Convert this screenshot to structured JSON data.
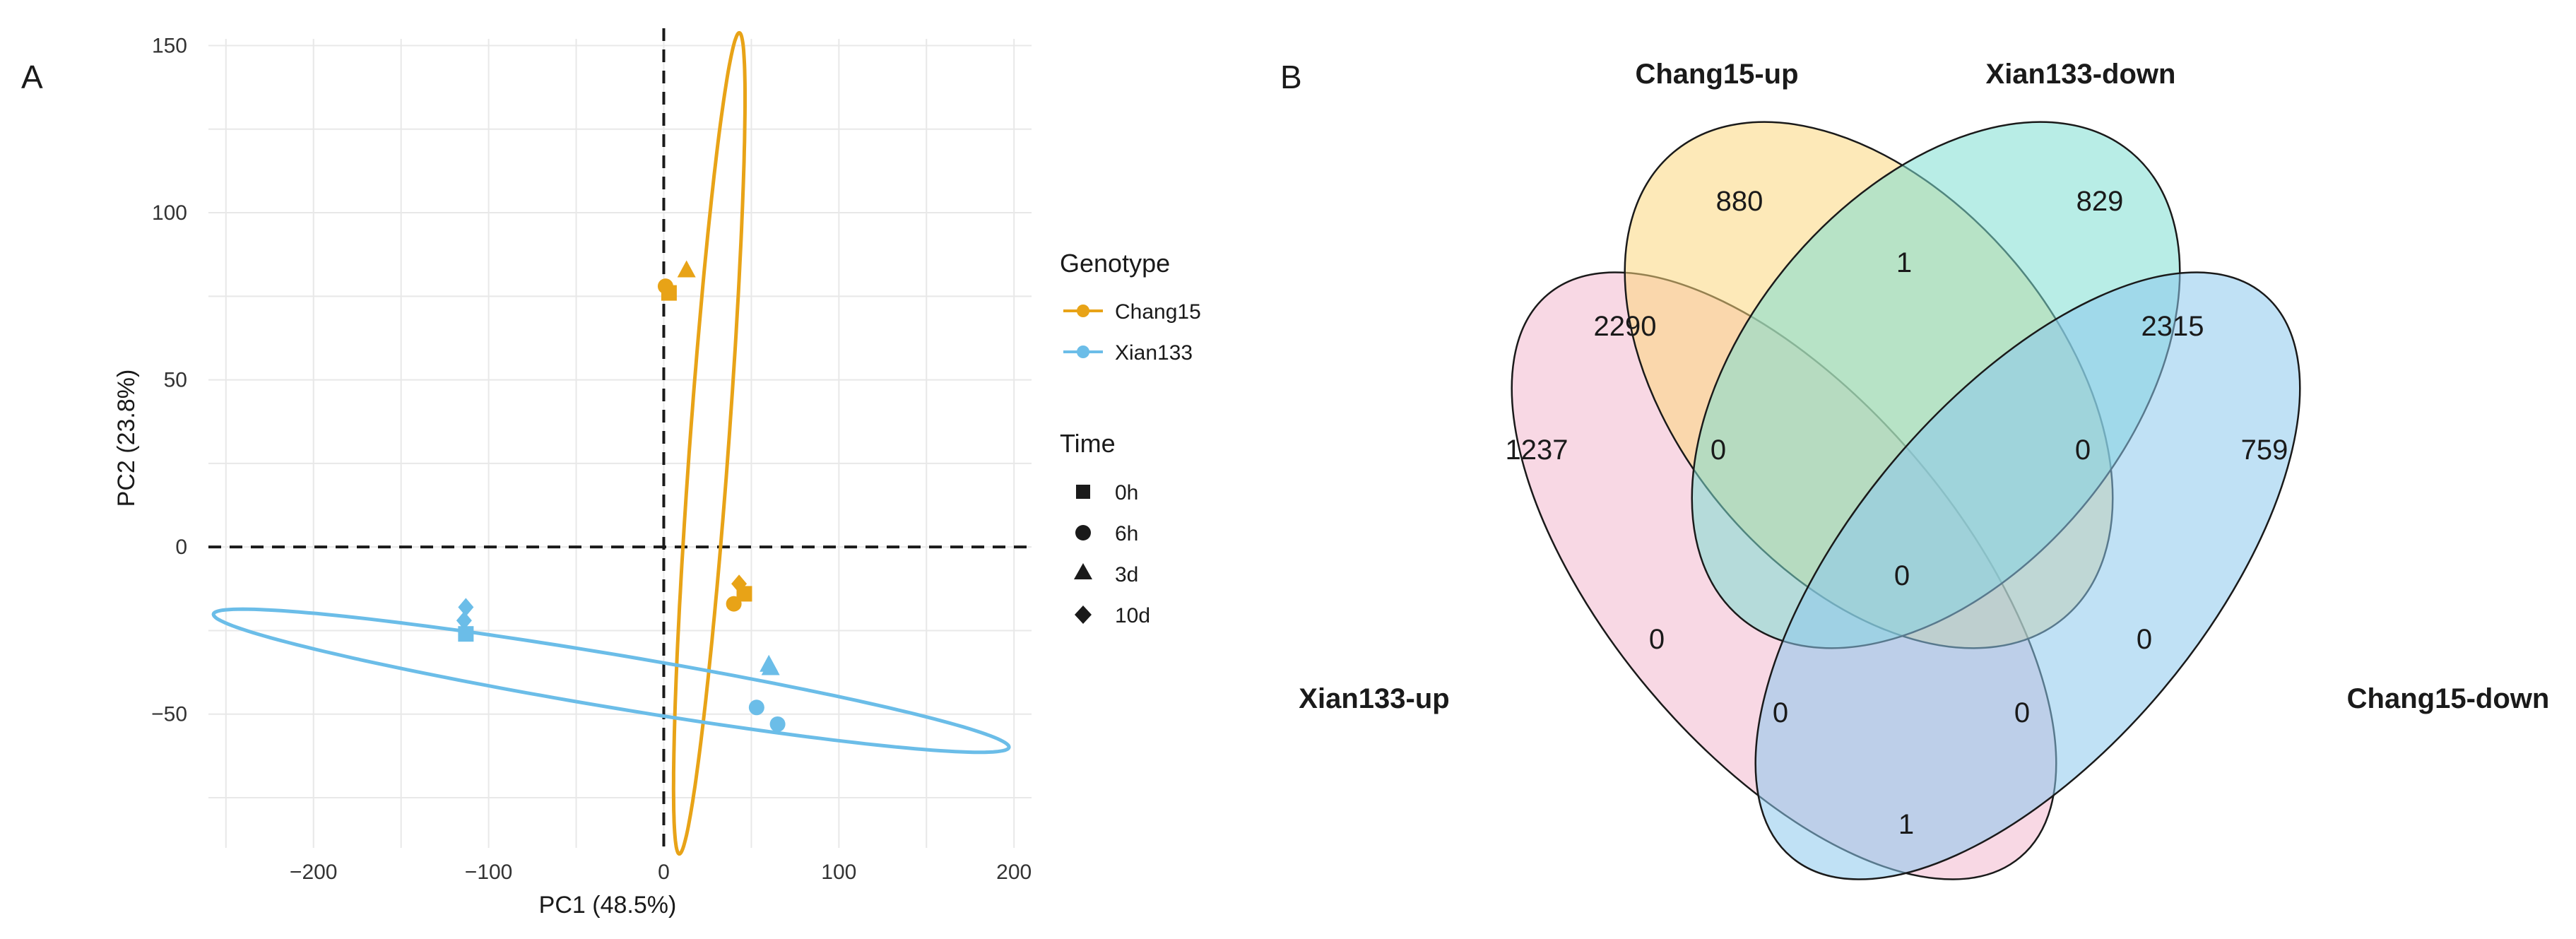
{
  "panels": {
    "a": "A",
    "b": "B"
  },
  "chart_data": [
    {
      "type": "scatter",
      "title": "",
      "xlabel": "PC1 (48.5%)",
      "ylabel": "PC2 (23.8%)",
      "xlim": [
        -260,
        210
      ],
      "ylim": [
        -90,
        152
      ],
      "x_ticks": [
        -200,
        -100,
        0,
        100,
        200
      ],
      "y_ticks": [
        -50,
        0,
        50,
        100,
        150
      ],
      "grid": true,
      "reference_lines": {
        "x": 0,
        "y": 0
      },
      "legend": {
        "placement": "right",
        "genotype_title": "Genotype",
        "genotype": [
          {
            "label": "Chang15",
            "color": "#E8A317"
          },
          {
            "label": "Xian133",
            "color": "#6BBDE8"
          }
        ],
        "time_title": "Time",
        "time": [
          {
            "label": "0h",
            "shape": "square"
          },
          {
            "label": "6h",
            "shape": "circle"
          },
          {
            "label": "3d",
            "shape": "triangle"
          },
          {
            "label": "10d",
            "shape": "diamond"
          }
        ]
      },
      "series": [
        {
          "genotype": "Chang15",
          "color": "#E8A317",
          "points": [
            {
              "x": 1,
              "y": 78,
              "shape": "circle"
            },
            {
              "x": 3,
              "y": 76,
              "shape": "square"
            },
            {
              "x": 13,
              "y": 83,
              "shape": "triangle"
            },
            {
              "x": 43,
              "y": -11,
              "shape": "diamond"
            },
            {
              "x": 46,
              "y": -14,
              "shape": "square"
            },
            {
              "x": 40,
              "y": -17,
              "shape": "circle"
            }
          ],
          "ellipse": {
            "cx": 26,
            "cy": 31,
            "rx": 124,
            "ry": 11,
            "angle_deg": 82
          }
        },
        {
          "genotype": "Xian133",
          "color": "#6BBDE8",
          "points": [
            {
              "x": -113,
              "y": -18,
              "shape": "diamond"
            },
            {
              "x": -114,
              "y": -22,
              "shape": "diamond"
            },
            {
              "x": -113,
              "y": -26,
              "shape": "square"
            },
            {
              "x": 60,
              "y": -35,
              "shape": "triangle"
            },
            {
              "x": 61,
              "y": -36,
              "shape": "triangle"
            },
            {
              "x": 53,
              "y": -48,
              "shape": "circle"
            },
            {
              "x": 65,
              "y": -53,
              "shape": "circle"
            }
          ],
          "ellipse": {
            "cx": -30,
            "cy": -40,
            "rx": 228,
            "ry": 8,
            "angle_deg": -5
          }
        }
      ]
    },
    {
      "type": "venn",
      "sets": [
        {
          "name": "Xian133-up",
          "color": "#F2B8CD"
        },
        {
          "name": "Chang15-up",
          "color": "#FBD77E"
        },
        {
          "name": "Xian133-down",
          "color": "#7EDED2"
        },
        {
          "name": "Chang15-down",
          "color": "#8CC9EC"
        }
      ],
      "regions": {
        "Xian133-up": 1237,
        "Chang15-up": 880,
        "Xian133-down": 829,
        "Chang15-down": 759,
        "Xian133-up&Chang15-up": 2290,
        "Chang15-up&Xian133-down": 1,
        "Xian133-down&Chang15-down": 2315,
        "Xian133-up&Chang15-down": 1,
        "Xian133-up&Chang15-up&Xian133-down": 0,
        "Chang15-up&Xian133-down&Chang15-down": 0,
        "all": 0,
        "Xian133-up&Xian133-down": 0,
        "Chang15-up&Chang15-down": 0,
        "Xian133-up&Xian133-down&Chang15-down": 0,
        "Xian133-up&Chang15-up&Chang15-down": 0
      }
    }
  ]
}
